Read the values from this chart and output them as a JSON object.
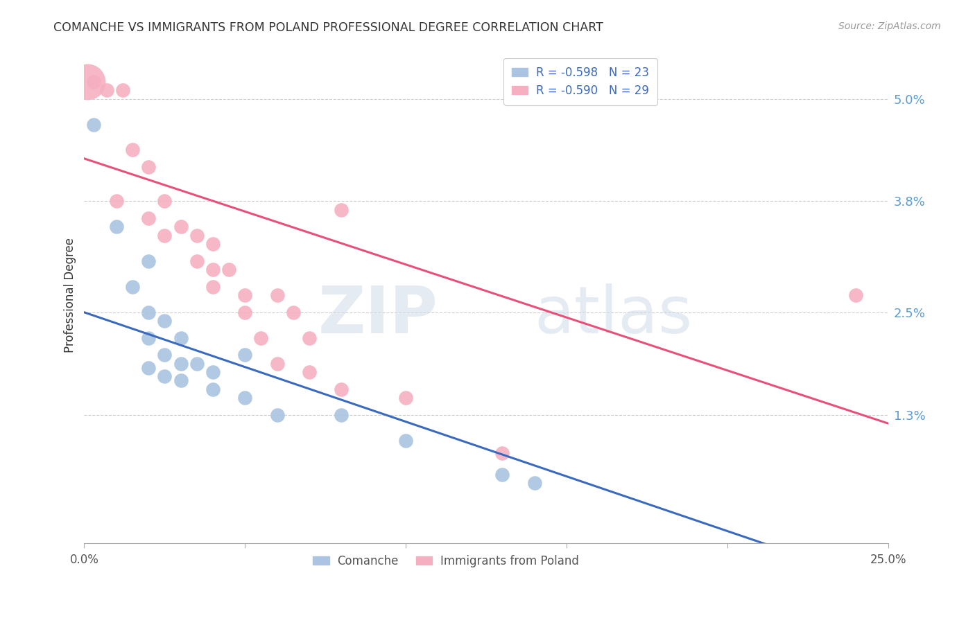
{
  "title": "COMANCHE VS IMMIGRANTS FROM POLAND PROFESSIONAL DEGREE CORRELATION CHART",
  "source": "Source: ZipAtlas.com",
  "ylabel": "Professional Degree",
  "ytick_labels": [
    "5.0%",
    "3.8%",
    "2.5%",
    "1.3%"
  ],
  "ytick_values": [
    0.05,
    0.038,
    0.025,
    0.013
  ],
  "xlim": [
    0.0,
    0.25
  ],
  "ylim": [
    -0.002,
    0.056
  ],
  "legend_blue_r": "R = -0.598",
  "legend_blue_n": "N = 23",
  "legend_pink_r": "R = -0.590",
  "legend_pink_n": "N = 29",
  "blue_color": "#aac4e2",
  "pink_color": "#f5afc0",
  "blue_line_color": "#3a6abf",
  "pink_line_color": "#e8507a",
  "blue_scatter": [
    [
      0.003,
      0.047
    ],
    [
      0.01,
      0.035
    ],
    [
      0.02,
      0.031
    ],
    [
      0.015,
      0.028
    ],
    [
      0.02,
      0.025
    ],
    [
      0.025,
      0.024
    ],
    [
      0.02,
      0.022
    ],
    [
      0.03,
      0.022
    ],
    [
      0.025,
      0.02
    ],
    [
      0.03,
      0.019
    ],
    [
      0.05,
      0.02
    ],
    [
      0.035,
      0.019
    ],
    [
      0.04,
      0.018
    ],
    [
      0.02,
      0.0185
    ],
    [
      0.025,
      0.0175
    ],
    [
      0.03,
      0.017
    ],
    [
      0.04,
      0.016
    ],
    [
      0.05,
      0.015
    ],
    [
      0.06,
      0.013
    ],
    [
      0.08,
      0.013
    ],
    [
      0.1,
      0.01
    ],
    [
      0.13,
      0.006
    ],
    [
      0.14,
      0.005
    ]
  ],
  "pink_scatter": [
    [
      0.003,
      0.052
    ],
    [
      0.007,
      0.051
    ],
    [
      0.012,
      0.051
    ],
    [
      0.015,
      0.044
    ],
    [
      0.02,
      0.042
    ],
    [
      0.01,
      0.038
    ],
    [
      0.025,
      0.038
    ],
    [
      0.02,
      0.036
    ],
    [
      0.03,
      0.035
    ],
    [
      0.025,
      0.034
    ],
    [
      0.035,
      0.034
    ],
    [
      0.04,
      0.033
    ],
    [
      0.035,
      0.031
    ],
    [
      0.04,
      0.03
    ],
    [
      0.045,
      0.03
    ],
    [
      0.04,
      0.028
    ],
    [
      0.05,
      0.027
    ],
    [
      0.06,
      0.027
    ],
    [
      0.05,
      0.025
    ],
    [
      0.065,
      0.025
    ],
    [
      0.08,
      0.037
    ],
    [
      0.055,
      0.022
    ],
    [
      0.07,
      0.022
    ],
    [
      0.06,
      0.019
    ],
    [
      0.07,
      0.018
    ],
    [
      0.08,
      0.016
    ],
    [
      0.1,
      0.015
    ],
    [
      0.13,
      0.0085
    ],
    [
      0.24,
      0.027
    ]
  ],
  "blue_line": [
    [
      0.0,
      0.025
    ],
    [
      0.25,
      -0.007
    ]
  ],
  "pink_line": [
    [
      0.0,
      0.043
    ],
    [
      0.25,
      0.012
    ]
  ],
  "watermark_zip_color": "#c5d8ea",
  "watermark_atlas_color": "#c5d8ea"
}
